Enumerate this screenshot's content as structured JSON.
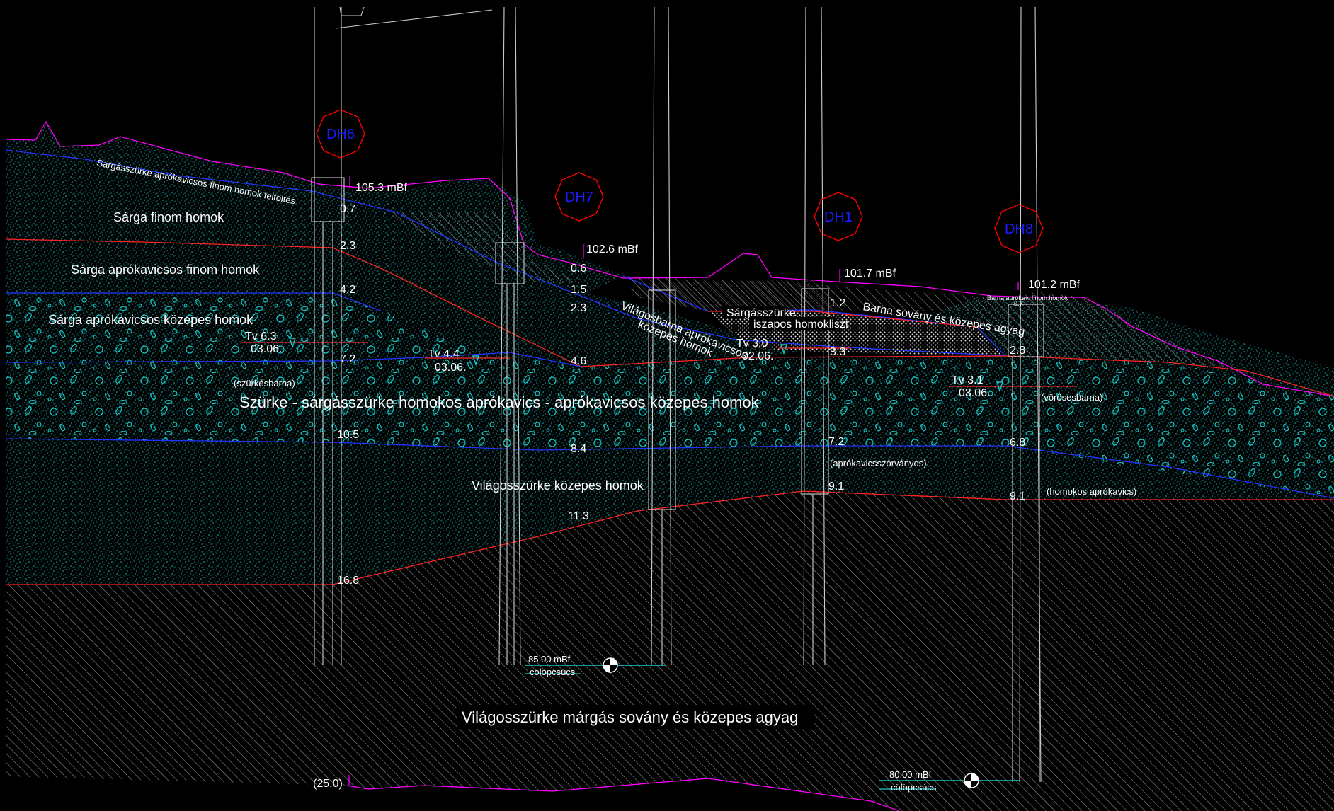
{
  "colors": {
    "background": "#000000",
    "surface_line": "#ff00ff",
    "layer_blue": "#2233ff",
    "layer_red": "#ff2222",
    "soil_cyan": "#19c8c8",
    "hatch": "#9a9a9a",
    "borehole_marker": "#ff0000",
    "borehole_text": "#1c1cff",
    "text": "#ffffff"
  },
  "layers": {
    "fill": "Sárgásszürke aprókavicsos finom homok feltöltés",
    "fine_sand": "Sárga finom homok",
    "gravelly_fine_sand": "Sárga aprókavicsos finom homok",
    "gravelly_medium_sand": "Sárga aprókavicsos közepes homok",
    "main_gravel": "Szürke - sárgásszürke homokos aprókavics - aprókavicsos közepes homok",
    "light_grey_medium_sand": "Világosszürke közepes homok",
    "clay": "Világosszürke márgás sovány és közepes agyag",
    "light_brown_1": "Világosbarna aprókavicsos",
    "light_brown_2": "közepes homok",
    "yellowish_grey_1": "Sárgásszürke",
    "yellowish_grey_2": "iszapos homokliszt",
    "brown_clay": "Barna sovány és közepes agyag",
    "brown_fine_sand": "Barna aprókav. finom homok"
  },
  "notes": {
    "greyish_brown": "(szürkésbarna)",
    "reddish_brown": "(vörösesbarna)",
    "gravel_scattered": "(aprókavicsszórványos)",
    "sandy_gravel": "(homokos aprókavics)"
  },
  "boreholes": [
    {
      "id": "DH6",
      "elevation": "105.3 mBf"
    },
    {
      "id": "DH7",
      "elevation": "102.6 mBf"
    },
    {
      "id": "DH1",
      "elevation": "101.7 mBf"
    },
    {
      "id": "DH8",
      "elevation": "101.2 mBf"
    }
  ],
  "depths": {
    "dh6": [
      "0.7",
      "2.3",
      "4.2",
      "7.2",
      "10.5",
      "16.8",
      "(25.0)"
    ],
    "dh7": [
      "0.6",
      "1.5",
      "2.3",
      "4.6",
      "8.4",
      "11.3"
    ],
    "dh1": [
      "1.2",
      "3.3",
      "7.2",
      "9.1"
    ],
    "dh8": [
      "0.7",
      "2.8",
      "6.8",
      "9.1"
    ]
  },
  "water_table": [
    {
      "level": "Tv 6.3",
      "date": "03.06."
    },
    {
      "level": "Tv 4.4",
      "date": "03.06."
    },
    {
      "level": "Tv 3.0",
      "date": "02.06."
    },
    {
      "level": "Tv 3.1",
      "date": "03.06."
    }
  ],
  "piles": [
    {
      "elevation": "85.00 mBf",
      "label": "cölöpcsúcs"
    },
    {
      "elevation": "80.00 mBf",
      "label": "cölöpcsúcs"
    }
  ]
}
